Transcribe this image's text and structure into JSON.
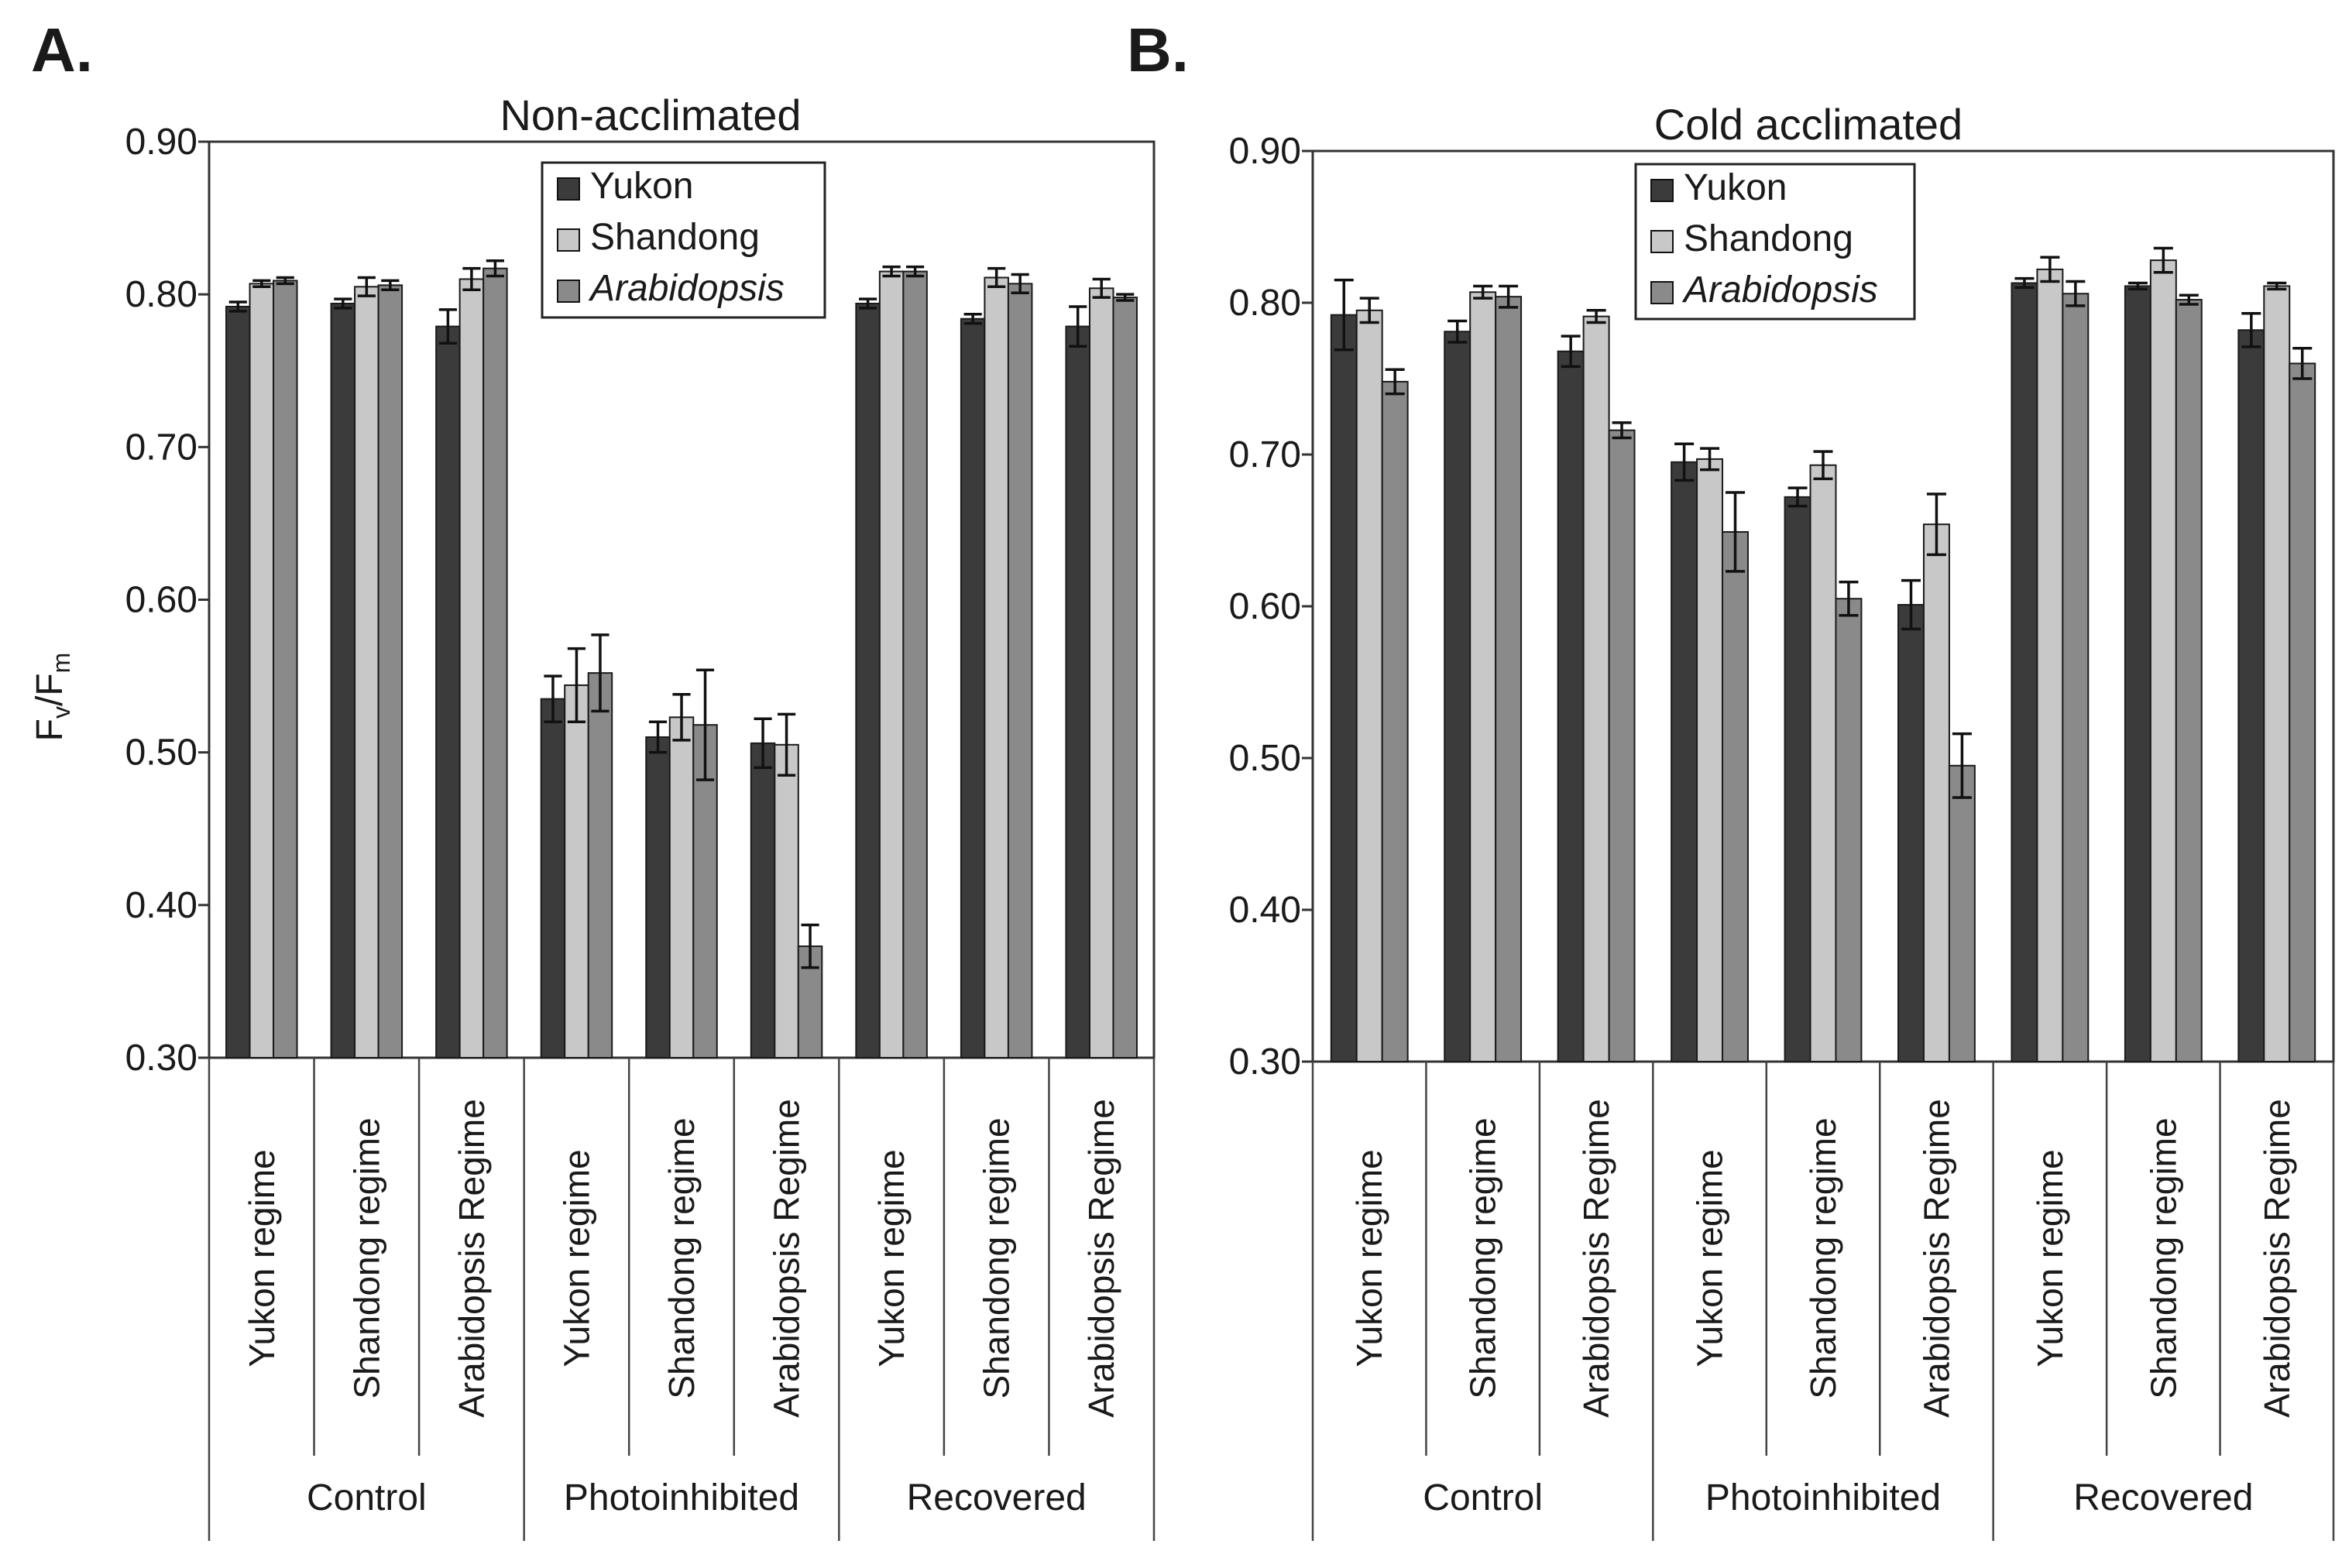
{
  "colors": {
    "Yukon": "#3b3b3b",
    "Shandong": "#c8c8c8",
    "Arabidopsis": "#8a8a8a"
  },
  "y_axis_label": {
    "main": "F",
    "sub_v": "v",
    "slash": "/F",
    "sub_m": "m"
  },
  "chart_data": [
    {
      "panel_label": "A.",
      "type": "bar",
      "title": "Non-acclimated",
      "ylim": [
        0.3,
        0.9
      ],
      "yticks": [
        "0.30",
        "0.40",
        "0.50",
        "0.60",
        "0.70",
        "0.80",
        "0.90"
      ],
      "categories": [
        "Yukon regime",
        "Shandong regime",
        "Arabidopsis Regime",
        "Yukon regime",
        "Shandong regime",
        "Arabidopsis Regime",
        "Yukon regime",
        "Shandong regime",
        "Arabidopsis Regime"
      ],
      "groups": [
        "Control",
        "Photoinhibited",
        "Recovered"
      ],
      "legend": [
        "Yukon",
        "Shandong",
        "Arabidopsis"
      ],
      "series": [
        {
          "name": "Yukon",
          "values": [
            0.792,
            0.794,
            0.779,
            0.535,
            0.51,
            0.506,
            0.794,
            0.784,
            0.779
          ],
          "errors": [
            0.003,
            0.003,
            0.011,
            0.015,
            0.01,
            0.016,
            0.003,
            0.003,
            0.013
          ]
        },
        {
          "name": "Shandong",
          "values": [
            0.807,
            0.805,
            0.81,
            0.544,
            0.523,
            0.505,
            0.815,
            0.811,
            0.804
          ],
          "errors": [
            0.002,
            0.006,
            0.007,
            0.024,
            0.015,
            0.02,
            0.003,
            0.006,
            0.006
          ]
        },
        {
          "name": "Arabidopsis",
          "values": [
            0.809,
            0.806,
            0.817,
            0.552,
            0.518,
            0.373,
            0.815,
            0.807,
            0.798
          ],
          "errors": [
            0.002,
            0.003,
            0.005,
            0.025,
            0.036,
            0.014,
            0.003,
            0.006,
            0.002
          ]
        }
      ]
    },
    {
      "panel_label": "B.",
      "type": "bar",
      "title": "Cold acclimated",
      "ylim": [
        0.3,
        0.9
      ],
      "yticks": [
        "0.30",
        "0.40",
        "0.50",
        "0.60",
        "0.70",
        "0.80",
        "0.90"
      ],
      "categories": [
        "Yukon regime",
        "Shandong regime",
        "Arabidopsis Regime",
        "Yukon regime",
        "Shandong regime",
        "Arabidopsis Regime",
        "Yukon regime",
        "Shandong regime",
        "Arabidopsis Regime"
      ],
      "groups": [
        "Control",
        "Photoinhibited",
        "Recovered"
      ],
      "legend": [
        "Yukon",
        "Shandong",
        "Arabidopsis"
      ],
      "series": [
        {
          "name": "Yukon",
          "values": [
            0.792,
            0.781,
            0.768,
            0.695,
            0.672,
            0.601,
            0.813,
            0.811,
            0.782
          ],
          "errors": [
            0.023,
            0.007,
            0.01,
            0.012,
            0.006,
            0.016,
            0.003,
            0.002,
            0.011
          ]
        },
        {
          "name": "Shandong",
          "values": [
            0.795,
            0.807,
            0.791,
            0.697,
            0.693,
            0.654,
            0.822,
            0.828,
            0.811
          ],
          "errors": [
            0.008,
            0.004,
            0.004,
            0.007,
            0.009,
            0.02,
            0.008,
            0.008,
            0.002
          ]
        },
        {
          "name": "Arabidopsis",
          "values": [
            0.748,
            0.804,
            0.716,
            0.649,
            0.605,
            0.495,
            0.806,
            0.802,
            0.76
          ],
          "errors": [
            0.008,
            0.007,
            0.005,
            0.026,
            0.011,
            0.021,
            0.008,
            0.003,
            0.01
          ]
        }
      ]
    }
  ]
}
